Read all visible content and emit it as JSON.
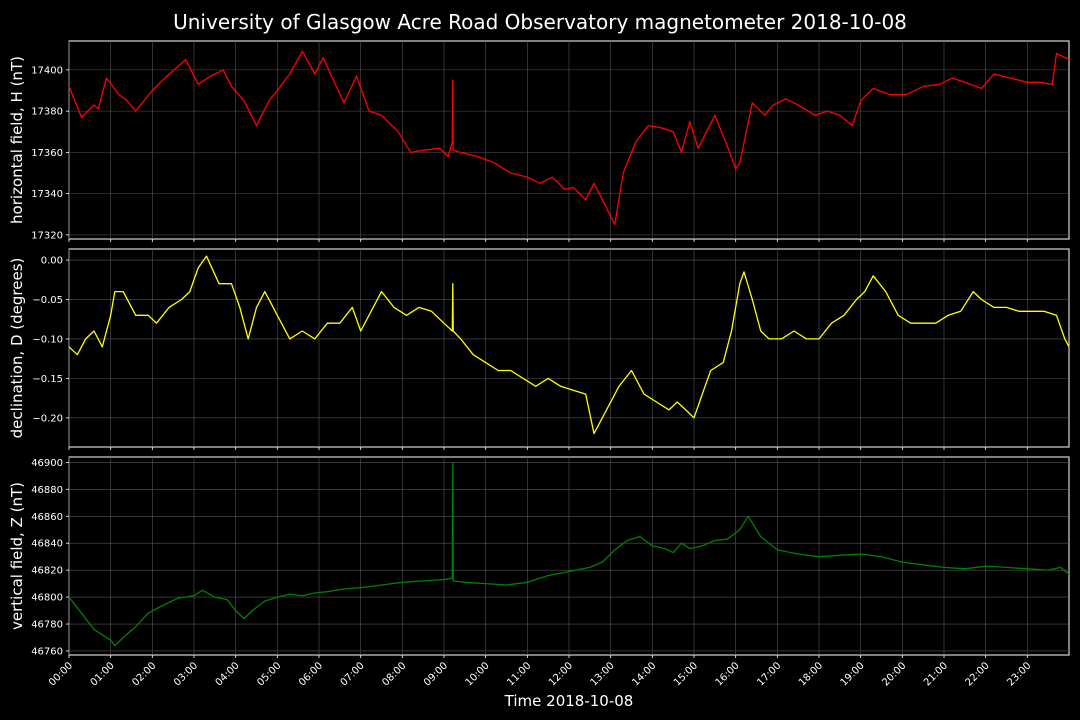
{
  "title": "University of Glasgow Acre Road Observatory magnetometer 2018-10-08",
  "xlabel": "Time 2018-10-08",
  "x_ticks": [
    "00:00",
    "01:00",
    "02:00",
    "03:00",
    "04:00",
    "05:00",
    "06:00",
    "07:00",
    "08:00",
    "09:00",
    "10:00",
    "11:00",
    "12:00",
    "13:00",
    "14:00",
    "15:00",
    "16:00",
    "17:00",
    "18:00",
    "19:00",
    "20:00",
    "21:00",
    "22:00",
    "23:00"
  ],
  "chart_data": [
    {
      "type": "line",
      "ylabel": "horizontal field, H (nT)",
      "ylim": [
        17318,
        17414
      ],
      "y_ticks": [
        17320,
        17340,
        17360,
        17380,
        17400
      ],
      "y_tick_labels": [
        "17320",
        "17340",
        "17360",
        "17380",
        "17400"
      ],
      "color": "#ff0000",
      "grid": true,
      "xlim_hours": [
        0,
        24
      ],
      "x_hours": [
        0,
        0.3,
        0.6,
        0.7,
        0.9,
        1.2,
        1.4,
        1.6,
        2.0,
        2.3,
        2.8,
        3.1,
        3.4,
        3.7,
        3.9,
        4.2,
        4.5,
        4.8,
        5.0,
        5.3,
        5.6,
        5.9,
        6.1,
        6.3,
        6.6,
        6.9,
        7.2,
        7.5,
        7.9,
        8.2,
        8.5,
        8.9,
        9.1,
        9.2,
        9.21,
        9.22,
        9.4,
        9.8,
        10.2,
        10.6,
        11.0,
        11.3,
        11.6,
        11.9,
        12.1,
        12.4,
        12.6,
        12.9,
        13.1,
        13.3,
        13.6,
        13.9,
        14.2,
        14.5,
        14.7,
        14.9,
        15.1,
        15.3,
        15.5,
        15.8,
        16.0,
        16.1,
        16.4,
        16.7,
        16.9,
        17.2,
        17.5,
        17.9,
        18.2,
        18.5,
        18.8,
        19.0,
        19.3,
        19.7,
        20.1,
        20.5,
        20.9,
        21.2,
        21.5,
        21.9,
        22.2,
        22.6,
        23.0,
        23.3,
        23.6,
        23.7,
        23.9,
        24.0
      ],
      "values": [
        17392,
        17377,
        17383,
        17381,
        17396,
        17388,
        17385,
        17380,
        17390,
        17396,
        17405,
        17393,
        17397,
        17400,
        17392,
        17385,
        17373,
        17385,
        17390,
        17398,
        17409,
        17398,
        17406,
        17397,
        17384,
        17397,
        17380,
        17378,
        17370,
        17360,
        17361,
        17362,
        17358,
        17365,
        17395,
        17361,
        17360,
        17358,
        17355,
        17350,
        17348,
        17345,
        17348,
        17342,
        17343,
        17337,
        17345,
        17333,
        17325,
        17350,
        17365,
        17373,
        17372,
        17370,
        17360,
        17375,
        17362,
        17370,
        17378,
        17363,
        17352,
        17355,
        17384,
        17378,
        17383,
        17386,
        17383,
        17378,
        17380,
        17378,
        17373,
        17385,
        17391,
        17388,
        17388,
        17392,
        17393,
        17396,
        17394,
        17391,
        17398,
        17396,
        17394,
        17394,
        17393,
        17408,
        17406,
        17405
      ]
    },
    {
      "type": "line",
      "ylabel": "declination, D (degrees)",
      "ylim": [
        -0.237,
        0.014
      ],
      "y_ticks": [
        -0.2,
        -0.15,
        -0.1,
        -0.05,
        0.0
      ],
      "y_tick_labels": [
        "−0.20",
        "−0.15",
        "−0.10",
        "−0.05",
        "0.00"
      ],
      "color": "#ffff00",
      "grid": true,
      "xlim_hours": [
        0,
        24
      ],
      "x_hours": [
        0,
        0.2,
        0.4,
        0.6,
        0.8,
        1.0,
        1.1,
        1.3,
        1.6,
        1.9,
        2.1,
        2.4,
        2.7,
        2.9,
        3.1,
        3.3,
        3.6,
        3.9,
        4.1,
        4.3,
        4.5,
        4.7,
        5.0,
        5.3,
        5.6,
        5.9,
        6.2,
        6.5,
        6.8,
        7.0,
        7.2,
        7.5,
        7.8,
        8.1,
        8.4,
        8.7,
        9.0,
        9.2,
        9.21,
        9.22,
        9.4,
        9.7,
        10.0,
        10.3,
        10.6,
        10.9,
        11.2,
        11.5,
        11.8,
        12.1,
        12.4,
        12.6,
        12.9,
        13.2,
        13.5,
        13.8,
        14.1,
        14.4,
        14.6,
        14.8,
        15.0,
        15.2,
        15.4,
        15.7,
        15.9,
        16.1,
        16.2,
        16.4,
        16.6,
        16.8,
        17.1,
        17.4,
        17.7,
        18.0,
        18.3,
        18.6,
        18.9,
        19.1,
        19.3,
        19.6,
        19.9,
        20.2,
        20.5,
        20.8,
        21.1,
        21.4,
        21.7,
        21.9,
        22.2,
        22.5,
        22.8,
        23.1,
        23.4,
        23.7,
        23.9,
        24.0
      ],
      "values": [
        -0.11,
        -0.12,
        -0.1,
        -0.09,
        -0.11,
        -0.07,
        -0.04,
        -0.04,
        -0.07,
        -0.07,
        -0.08,
        -0.06,
        -0.05,
        -0.04,
        -0.01,
        0.005,
        -0.03,
        -0.03,
        -0.06,
        -0.1,
        -0.06,
        -0.04,
        -0.07,
        -0.1,
        -0.09,
        -0.1,
        -0.08,
        -0.08,
        -0.06,
        -0.09,
        -0.07,
        -0.04,
        -0.06,
        -0.07,
        -0.06,
        -0.065,
        -0.08,
        -0.09,
        -0.03,
        -0.09,
        -0.1,
        -0.12,
        -0.13,
        -0.14,
        -0.14,
        -0.15,
        -0.16,
        -0.15,
        -0.16,
        -0.165,
        -0.17,
        -0.22,
        -0.19,
        -0.16,
        -0.14,
        -0.17,
        -0.18,
        -0.19,
        -0.18,
        -0.19,
        -0.2,
        -0.17,
        -0.14,
        -0.13,
        -0.09,
        -0.03,
        -0.015,
        -0.05,
        -0.09,
        -0.1,
        -0.1,
        -0.09,
        -0.1,
        -0.1,
        -0.08,
        -0.07,
        -0.05,
        -0.04,
        -0.02,
        -0.04,
        -0.07,
        -0.08,
        -0.08,
        -0.08,
        -0.07,
        -0.065,
        -0.04,
        -0.05,
        -0.06,
        -0.06,
        -0.065,
        -0.065,
        -0.065,
        -0.07,
        -0.1,
        -0.11
      ]
    },
    {
      "type": "line",
      "ylabel": "vertical field, Z (nT)",
      "ylim": [
        46757,
        46904
      ],
      "y_ticks": [
        46760,
        46780,
        46800,
        46820,
        46840,
        46860,
        46880,
        46900
      ],
      "y_tick_labels": [
        "46760",
        "46780",
        "46800",
        "46820",
        "46840",
        "46860",
        "46880",
        "46900"
      ],
      "color": "#008000",
      "grid": true,
      "xlim_hours": [
        0,
        24
      ],
      "x_hours": [
        0,
        0.3,
        0.6,
        0.8,
        1.0,
        1.1,
        1.3,
        1.6,
        1.9,
        2.2,
        2.6,
        3.0,
        3.2,
        3.5,
        3.8,
        4.0,
        4.2,
        4.4,
        4.7,
        5.0,
        5.3,
        5.6,
        5.9,
        6.2,
        6.6,
        7.0,
        7.5,
        8.0,
        8.5,
        9.0,
        9.2,
        9.21,
        9.22,
        9.5,
        10.0,
        10.5,
        11.0,
        11.5,
        12.0,
        12.5,
        12.8,
        13.1,
        13.4,
        13.7,
        14.0,
        14.3,
        14.5,
        14.7,
        14.9,
        15.2,
        15.5,
        15.8,
        16.1,
        16.3,
        16.6,
        17.0,
        17.5,
        18.0,
        18.5,
        19.0,
        19.5,
        20.0,
        20.5,
        21.0,
        21.5,
        22.0,
        22.5,
        23.0,
        23.5,
        23.8,
        24.0
      ],
      "values": [
        46800,
        46788,
        46776,
        46772,
        46768,
        46764,
        46770,
        46778,
        46788,
        46793,
        46799,
        46801,
        46805,
        46800,
        46798,
        46790,
        46784,
        46790,
        46797,
        46800,
        46802,
        46801,
        46803,
        46804,
        46806,
        46807,
        46809,
        46811,
        46812,
        46813,
        46814,
        46900,
        46812,
        46811,
        46810,
        46809,
        46811,
        46816,
        46819,
        46822,
        46826,
        46835,
        46842,
        46845,
        46838,
        46836,
        46833,
        46840,
        46836,
        46838,
        46842,
        46843,
        46850,
        46860,
        46845,
        46835,
        46832,
        46830,
        46831,
        46832,
        46830,
        46826,
        46824,
        46822,
        46821,
        46823,
        46822,
        46821,
        46820,
        46822,
        46817
      ]
    }
  ]
}
